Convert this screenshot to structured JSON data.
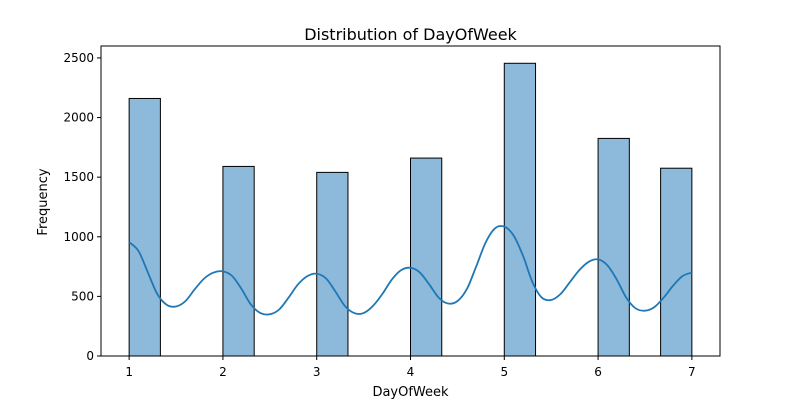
{
  "chart_data": {
    "type": "bar",
    "title": "Distribution of DayOfWeek",
    "xlabel": "DayOfWeek",
    "ylabel": "Frequency",
    "xlim": [
      0.7,
      7.3
    ],
    "ylim": [
      0,
      2600
    ],
    "x_ticks": [
      1,
      2,
      3,
      4,
      5,
      6,
      7
    ],
    "x_tick_labels": [
      "1",
      "2",
      "3",
      "4",
      "5",
      "6",
      "7"
    ],
    "y_ticks": [
      0,
      500,
      1000,
      1500,
      2000,
      2500
    ],
    "y_tick_labels": [
      "0",
      "500",
      "1000",
      "1500",
      "2000",
      "2500"
    ],
    "bin_width": 0.3333,
    "bars": [
      {
        "x": 1,
        "value": 2160
      },
      {
        "x": 2,
        "value": 1590
      },
      {
        "x": 3,
        "value": 1540
      },
      {
        "x": 4,
        "value": 1660
      },
      {
        "x": 5,
        "value": 2455
      },
      {
        "x": 6,
        "value": 1825
      },
      {
        "x": 7,
        "value": 1575
      }
    ],
    "kde": {
      "x": [
        1.0,
        1.1,
        1.2,
        1.3,
        1.4,
        1.5,
        1.6,
        1.7,
        1.8,
        1.9,
        2.0,
        2.1,
        2.2,
        2.3,
        2.4,
        2.5,
        2.6,
        2.7,
        2.8,
        2.9,
        3.0,
        3.1,
        3.2,
        3.3,
        3.4,
        3.5,
        3.6,
        3.7,
        3.8,
        3.9,
        4.0,
        4.1,
        4.2,
        4.3,
        4.4,
        4.5,
        4.6,
        4.7,
        4.8,
        4.9,
        5.0,
        5.1,
        5.2,
        5.3,
        5.4,
        5.5,
        5.6,
        5.7,
        5.8,
        5.9,
        6.0,
        6.1,
        6.2,
        6.3,
        6.4,
        6.5,
        6.6,
        6.7,
        6.8,
        6.9,
        7.0
      ],
      "y": [
        955,
        880,
        700,
        520,
        430,
        415,
        460,
        560,
        650,
        700,
        710,
        670,
        560,
        430,
        360,
        350,
        390,
        490,
        600,
        670,
        690,
        650,
        540,
        420,
        360,
        360,
        420,
        520,
        640,
        720,
        740,
        700,
        600,
        490,
        440,
        460,
        560,
        750,
        950,
        1070,
        1085,
        1010,
        840,
        620,
        490,
        470,
        520,
        620,
        720,
        790,
        810,
        760,
        640,
        490,
        400,
        380,
        410,
        490,
        590,
        670,
        700
      ],
      "color": "#1f77b4"
    },
    "bar_color": "#8dbadb",
    "grid": false,
    "legend": false
  }
}
